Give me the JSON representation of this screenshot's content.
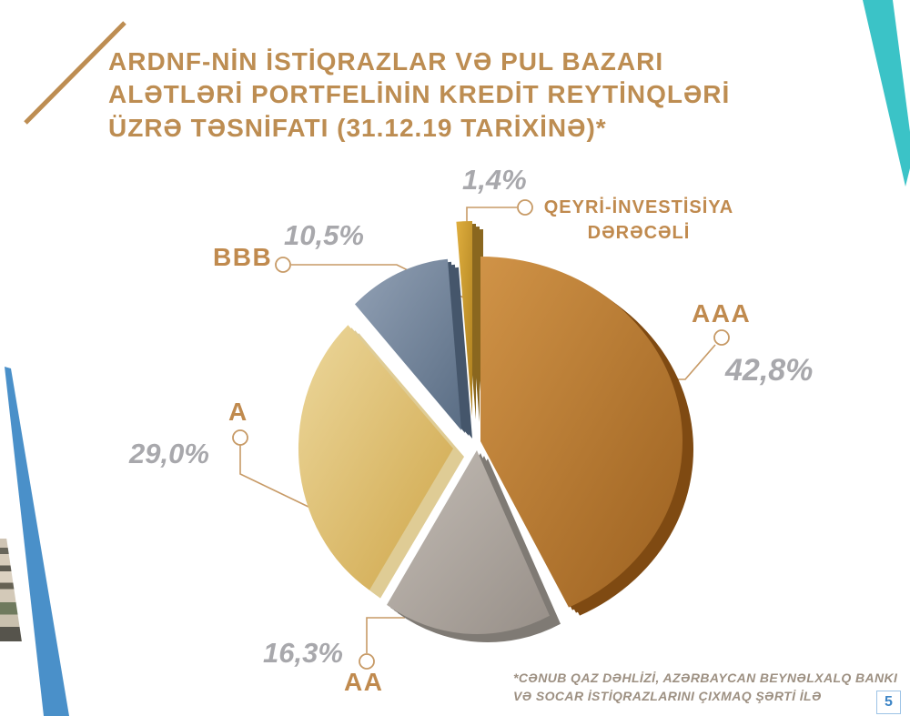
{
  "header": {
    "title_lines": [
      "ARDNF-NİN İSTİQRAZLAR VƏ PUL BAZARI",
      "ALƏTLƏRİ PORTFELİNİN KREDİT REYTİNQLƏRİ",
      "ÜZRƏ TƏSNİFATI (31.12.19 TARİXİNƏ)*"
    ]
  },
  "footnote": {
    "lines": [
      "*CƏNUB QAZ DƏHLİZİ, AZƏRBAYCAN BEYNƏLXALQ BANKI",
      "VƏ SOCAR İSTİQRAZLARINI ÇIXMAQ ŞƏRTİ İLƏ"
    ]
  },
  "page": {
    "number": "5"
  },
  "colors": {
    "background": "#ffffff",
    "title": "#bd8d52",
    "rating": "#c08a4e",
    "percent": "#a8a8ac",
    "connector": "#c79a66",
    "footnote": "#9d9082",
    "teal": "#3bc3c7",
    "blue_stripe": "#4a90c9",
    "slash": "#bd8d52",
    "page_border": "#9dc3e6",
    "page_number": "#3d85c6"
  },
  "chart_data": {
    "type": "pie",
    "title": "ARDNF-NİN İSTİQRAZLAR VƏ PUL BAZARI ALƏTLƏRİ PORTFELİNİN KREDİT REYTİNQLƏRİ ÜZRƏ TƏSNİFATI (31.12.19 TARİXİNƏ)*",
    "unit": "%",
    "direction": "clockwise",
    "start_angle_deg": 0,
    "style": "3d-exploded-metallic",
    "slices": [
      {
        "id": "aaa",
        "label": "AAA",
        "value": 42.8,
        "display": "42,8%",
        "color_top": "#d09347",
        "color_bottom": "#9c6120",
        "side_color": "#7f4a12"
      },
      {
        "id": "aa",
        "label": "AA",
        "value": 16.3,
        "display": "16,3%",
        "color_top": "#c4bdb6",
        "color_bottom": "#978f88",
        "side_color": "#7f7a74"
      },
      {
        "id": "a",
        "label": "A",
        "value": 29.0,
        "display": "29,0%",
        "color_top": "#ecd79b",
        "color_bottom": "#cfa64a",
        "side_color": "#dfcc95"
      },
      {
        "id": "bbb",
        "label": "BBB",
        "value": 10.5,
        "display": "10,5%",
        "color_top": "#92a1b5",
        "color_bottom": "#5a6d84",
        "side_color": "#45566b"
      },
      {
        "id": "non_investment",
        "label": "QEYRİ-İNVESTİSİYA DƏRƏCƏLİ",
        "value": 1.4,
        "display": "1,4%",
        "color_top": "#dfae3e",
        "color_bottom": "#ad801f",
        "side_color": "#8a671f"
      }
    ]
  }
}
